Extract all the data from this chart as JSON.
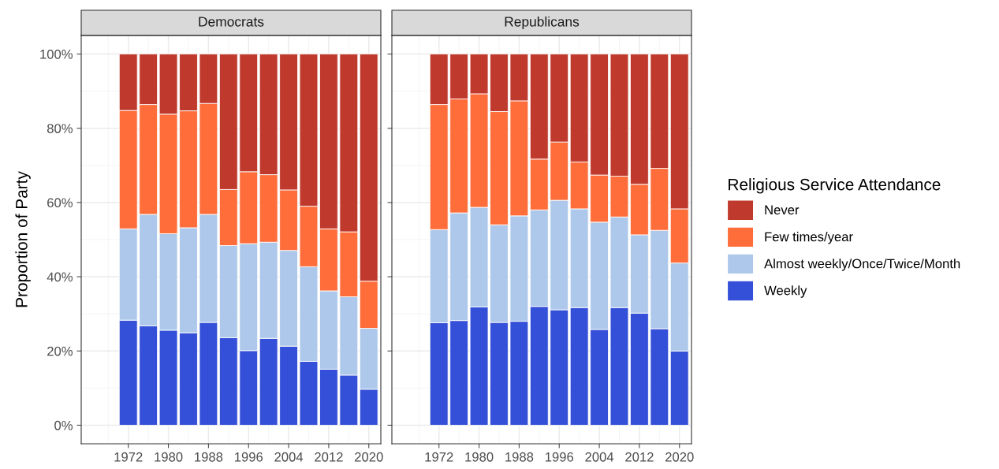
{
  "chart_data": [
    {
      "type": "bar",
      "title": "Democrats",
      "ylabel": "Proportion of Party",
      "stacked": true,
      "grid": true,
      "legend": false,
      "x": [
        1972,
        1976,
        1980,
        1984,
        1988,
        1992,
        1996,
        2000,
        2004,
        2008,
        2012,
        2016,
        2020
      ],
      "xlim": [
        1962.6,
        2022.4
      ],
      "xticks": [
        1972,
        1980,
        1988,
        1996,
        2004,
        2012,
        2020
      ],
      "ylim": [
        -5,
        105
      ],
      "yticks": [
        {
          "value": 0,
          "label": "0%"
        },
        {
          "value": 20,
          "label": "20%"
        },
        {
          "value": 40,
          "label": "40%"
        },
        {
          "value": 60,
          "label": "60%"
        },
        {
          "value": 80,
          "label": "80%"
        },
        {
          "value": 100,
          "label": "100%"
        }
      ],
      "series": [
        {
          "color": "#3450d8",
          "values": [
            28.3,
            26.8,
            25.6,
            24.9,
            27.7,
            23.6,
            20.1,
            23.4,
            21.3,
            17.2,
            15.1,
            13.5,
            9.7
          ]
        },
        {
          "color": "#adc8ea",
          "values": [
            24.6,
            30.0,
            26.0,
            28.3,
            29.1,
            24.8,
            28.8,
            25.9,
            25.8,
            25.5,
            21.1,
            21.1,
            16.4
          ]
        },
        {
          "color": "#fe6d3a",
          "values": [
            31.9,
            29.6,
            32.2,
            31.5,
            29.9,
            15.1,
            19.4,
            18.2,
            16.3,
            16.3,
            16.7,
            17.5,
            12.7
          ]
        },
        {
          "color": "#c0392d",
          "values": [
            15.2,
            13.6,
            16.2,
            15.3,
            13.3,
            36.5,
            31.7,
            32.5,
            36.6,
            41.0,
            47.1,
            47.9,
            61.2
          ]
        }
      ]
    },
    {
      "type": "bar",
      "title": "Republicans",
      "stacked": true,
      "grid": true,
      "legend": "right",
      "legend_title": "Religious Service Attendance",
      "tick_labels": "x",
      "x": [
        1972,
        1976,
        1980,
        1984,
        1988,
        1992,
        1996,
        2000,
        2004,
        2008,
        2012,
        2016,
        2020
      ],
      "xlim": [
        1962.6,
        2022.4
      ],
      "xticks": [
        1972,
        1980,
        1988,
        1996,
        2004,
        2012,
        2020
      ],
      "ylim": [
        -5,
        105
      ],
      "yticks": [
        0,
        20,
        40,
        60,
        80,
        100
      ],
      "series": [
        {
          "name": "Weekly",
          "color": "#3450d8",
          "values": [
            27.6,
            28.2,
            31.9,
            27.7,
            28.0,
            32.0,
            31.1,
            31.7,
            25.8,
            31.7,
            30.2,
            26.0,
            20.0
          ]
        },
        {
          "name": "Almost weekly/Once/Twice/Month",
          "color": "#adc8ea",
          "values": [
            25.1,
            29.0,
            26.8,
            26.3,
            28.4,
            26.0,
            29.5,
            26.6,
            28.9,
            24.4,
            21.1,
            26.5,
            23.7
          ]
        },
        {
          "name": "Few times/year",
          "color": "#fe6d3a",
          "values": [
            33.7,
            30.7,
            30.6,
            30.5,
            31.0,
            13.7,
            15.7,
            12.6,
            12.7,
            11.0,
            13.6,
            16.7,
            14.6
          ]
        },
        {
          "name": "Never",
          "color": "#c0392d",
          "values": [
            13.6,
            12.1,
            10.7,
            15.5,
            12.6,
            28.3,
            23.7,
            29.1,
            32.6,
            32.9,
            35.1,
            30.8,
            41.7
          ]
        }
      ]
    }
  ]
}
